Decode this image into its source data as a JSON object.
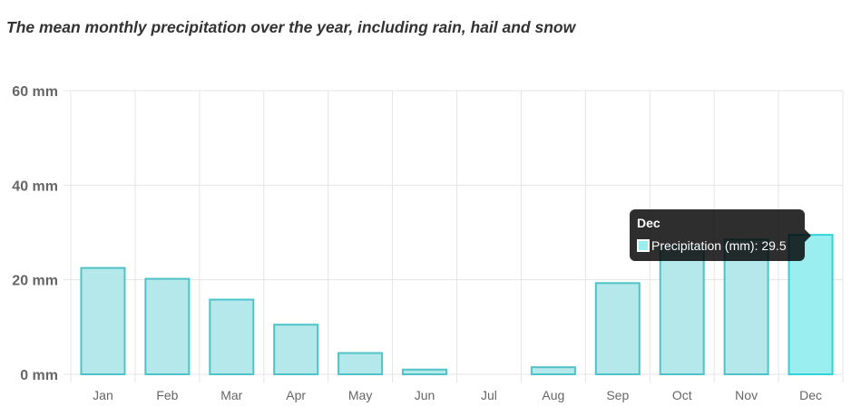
{
  "title": "The mean monthly precipitation over the year, including rain, hail and snow",
  "colors": {
    "bar_fill": "#b4e8ea",
    "bar_stroke": "#4fc3c7",
    "bar_fill_hover": "#9aeef0",
    "bar_stroke_hover": "#2fd3d8",
    "grid": "#e5e5e5",
    "tick_text": "#666666"
  },
  "chart_data": {
    "type": "bar",
    "categories": [
      "Jan",
      "Feb",
      "Mar",
      "Apr",
      "May",
      "Jun",
      "Jul",
      "Aug",
      "Sep",
      "Oct",
      "Nov",
      "Dec"
    ],
    "series": [
      {
        "name": "Precipitation (mm)",
        "values": [
          22.5,
          20.2,
          15.8,
          10.5,
          4.5,
          1.0,
          0.0,
          1.5,
          19.3,
          27.0,
          28.5,
          29.5
        ]
      }
    ],
    "ylim": [
      0,
      60
    ],
    "yticks": [
      0,
      20,
      40,
      60
    ],
    "ytick_labels": [
      "0 mm",
      "20 mm",
      "40 mm",
      "60 mm"
    ],
    "grid": true,
    "highlighted": "Dec"
  },
  "tooltip": {
    "title": "Dec",
    "label": "Precipitation (mm): 29.5"
  }
}
